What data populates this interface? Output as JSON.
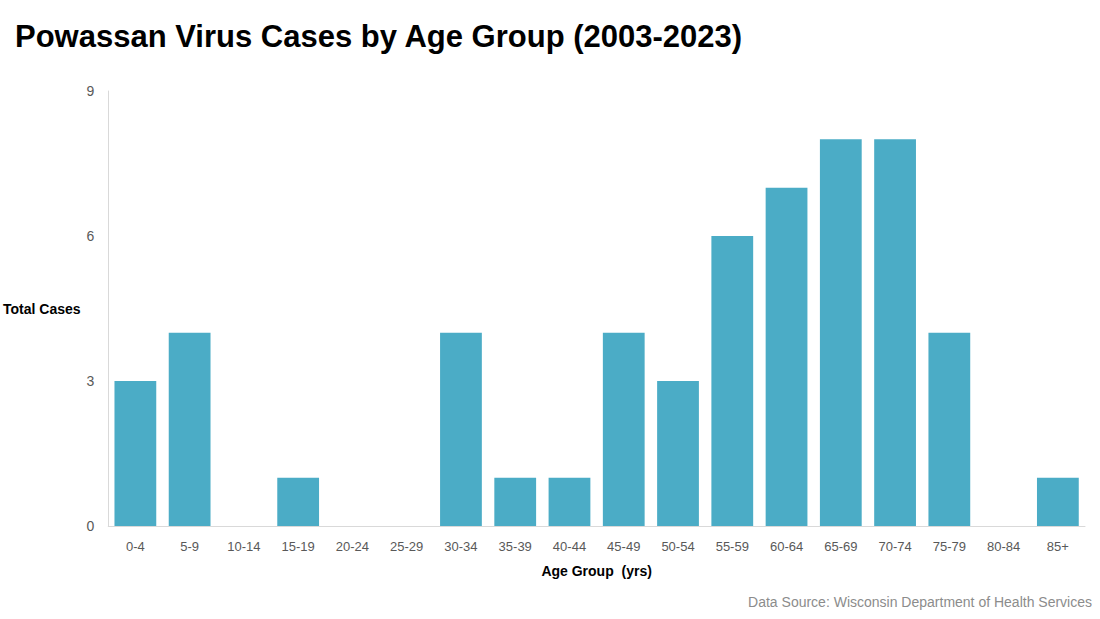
{
  "chart_data": {
    "type": "bar",
    "title": "Powassan Virus Cases by Age Group (2003-2023)",
    "x_label": "Age Group  (yrs)",
    "y_label": "Total Cases",
    "annotation": "Data Source: Wisconsin Department of Health Services",
    "categories": [
      "0-4",
      "5-9",
      "10-14",
      "15-19",
      "20-24",
      "25-29",
      "30-34",
      "35-39",
      "40-44",
      "45-49",
      "50-54",
      "55-59",
      "60-64",
      "65-69",
      "70-74",
      "75-79",
      "80-84",
      "85+"
    ],
    "values": [
      3,
      4,
      0,
      1,
      0,
      0,
      4,
      1,
      1,
      4,
      3,
      6,
      7,
      8,
      8,
      4,
      0,
      1
    ],
    "color": "#4bacc6",
    "ylim": [
      0,
      9
    ],
    "yticks": [
      0,
      3,
      6,
      9
    ],
    "grid": false
  }
}
